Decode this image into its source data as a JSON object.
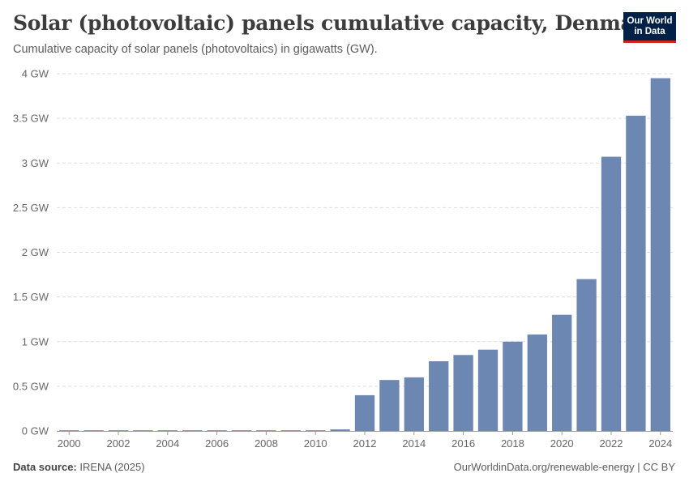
{
  "header": {
    "title": "Solar (photovoltaic) panels cumulative capacity, Denmark",
    "subtitle": "Cumulative capacity of solar panels (photovoltaics) in gigawatts (GW)."
  },
  "logo": {
    "line1": "Our World",
    "line2": "in Data"
  },
  "footer": {
    "source_label": "Data source:",
    "source_value": "IRENA (2025)",
    "credit": "OurWorldinData.org/renewable-energy | CC BY"
  },
  "colors": {
    "bar": "#6d87b3",
    "grid": "#dddddd",
    "axis": "#999999"
  },
  "chart_data": {
    "type": "bar",
    "title": "Solar (photovoltaic) panels cumulative capacity, Denmark",
    "xlabel": "",
    "ylabel": "",
    "unit": "GW",
    "ylim": [
      0,
      4
    ],
    "yticks": [
      0,
      0.5,
      1,
      1.5,
      2,
      2.5,
      3,
      3.5,
      4
    ],
    "ytick_labels": [
      "0 GW",
      "0.5 GW",
      "1 GW",
      "1.5 GW",
      "2 GW",
      "2.5 GW",
      "3 GW",
      "3.5 GW",
      "4 GW"
    ],
    "categories": [
      "2000",
      "2001",
      "2002",
      "2003",
      "2004",
      "2005",
      "2006",
      "2007",
      "2008",
      "2009",
      "2010",
      "2011",
      "2012",
      "2013",
      "2014",
      "2015",
      "2016",
      "2017",
      "2018",
      "2019",
      "2020",
      "2021",
      "2022",
      "2023",
      "2024"
    ],
    "values": [
      0.001,
      0.002,
      0.002,
      0.002,
      0.002,
      0.003,
      0.003,
      0.003,
      0.003,
      0.005,
      0.007,
      0.017,
      0.4,
      0.57,
      0.6,
      0.78,
      0.85,
      0.91,
      1.0,
      1.08,
      1.3,
      1.7,
      3.07,
      3.53,
      3.95
    ],
    "xtick_labels": [
      "2000",
      "2002",
      "2004",
      "2006",
      "2008",
      "2010",
      "2012",
      "2014",
      "2016",
      "2018",
      "2020",
      "2022",
      "2024"
    ]
  }
}
